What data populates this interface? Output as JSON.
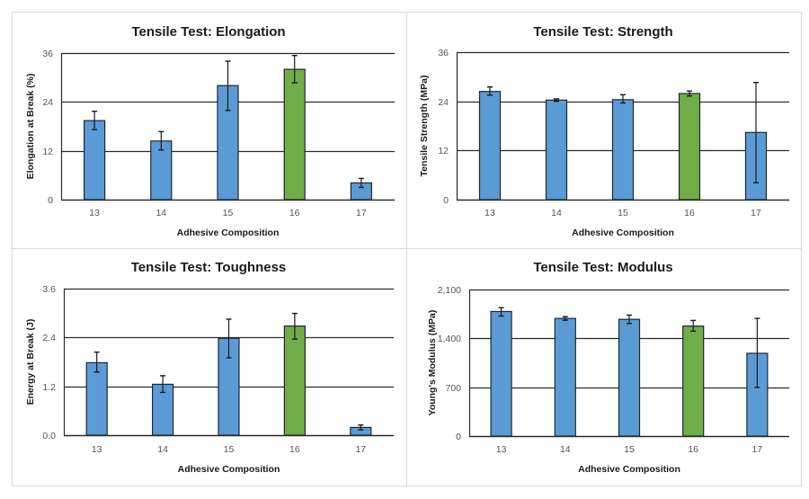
{
  "colors": {
    "bar": "#5B9BD5",
    "highlight_bar": "#70AD47",
    "bar_outline": "#1c2733",
    "gridline": "#2b2b2b",
    "panel_border": "#d9d9d9",
    "error_bar": "#1a1a1a"
  },
  "chart_data": [
    {
      "type": "bar",
      "title": "Tensile Test: Elongation",
      "xlabel": "Adhesive Composition",
      "ylabel": "Elongation at Break (%)",
      "categories": [
        "13",
        "14",
        "15",
        "16",
        "17"
      ],
      "values": [
        19.4,
        14.4,
        28.0,
        32.0,
        4.1
      ],
      "error_low": [
        17.2,
        12.2,
        21.9,
        28.7,
        3.0
      ],
      "error_high": [
        21.7,
        16.7,
        34.0,
        35.4,
        5.2
      ],
      "highlight_index": 3,
      "ylim": [
        0,
        36
      ],
      "yticks": [
        "0",
        "12",
        "24",
        "36"
      ],
      "ytick_values": [
        0,
        12,
        24,
        36
      ],
      "grid": true
    },
    {
      "type": "bar",
      "title": "Tensile Test: Strength",
      "xlabel": "Adhesive Composition",
      "ylabel": "Tensile Strength (MPa)",
      "categories": [
        "13",
        "14",
        "15",
        "16",
        "17"
      ],
      "values": [
        26.4,
        24.3,
        24.4,
        25.9,
        16.4
      ],
      "error_low": [
        25.5,
        24.0,
        23.6,
        25.3,
        4.1
      ],
      "error_high": [
        27.5,
        24.6,
        25.6,
        26.5,
        28.6
      ],
      "highlight_index": 3,
      "ylim": [
        0,
        36
      ],
      "yticks": [
        "0",
        "12",
        "24",
        "36"
      ],
      "ytick_values": [
        0,
        12,
        24,
        36
      ],
      "grid": true
    },
    {
      "type": "bar",
      "title": "Tensile Test: Toughness",
      "xlabel": "Adhesive Composition",
      "ylabel": "Energy at Break (J)",
      "categories": [
        "13",
        "14",
        "15",
        "16",
        "17"
      ],
      "values": [
        1.78,
        1.25,
        2.38,
        2.68,
        0.19
      ],
      "error_low": [
        1.55,
        1.05,
        1.9,
        2.36,
        0.13
      ],
      "error_high": [
        2.04,
        1.46,
        2.85,
        2.99,
        0.25
      ],
      "highlight_index": 3,
      "ylim": [
        0,
        3.6
      ],
      "yticks": [
        "0.0",
        "1.2",
        "2.4",
        "3.6"
      ],
      "ytick_values": [
        0,
        1.2,
        2.4,
        3.6
      ],
      "grid": true
    },
    {
      "type": "bar",
      "title": "Tensile Test: Modulus",
      "xlabel": "Adhesive Composition",
      "ylabel": "Young's Modulus (MPa)",
      "categories": [
        "13",
        "14",
        "15",
        "16",
        "17"
      ],
      "values": [
        1785,
        1686,
        1673,
        1576,
        1186
      ],
      "error_low": [
        1720,
        1660,
        1613,
        1503,
        697
      ],
      "error_high": [
        1840,
        1711,
        1733,
        1657,
        1686
      ],
      "highlight_index": 3,
      "ylim": [
        0,
        2100
      ],
      "yticks": [
        "0",
        "700",
        "1,400",
        "2,100"
      ],
      "ytick_values": [
        0,
        700,
        1400,
        2100
      ],
      "grid": true
    }
  ]
}
